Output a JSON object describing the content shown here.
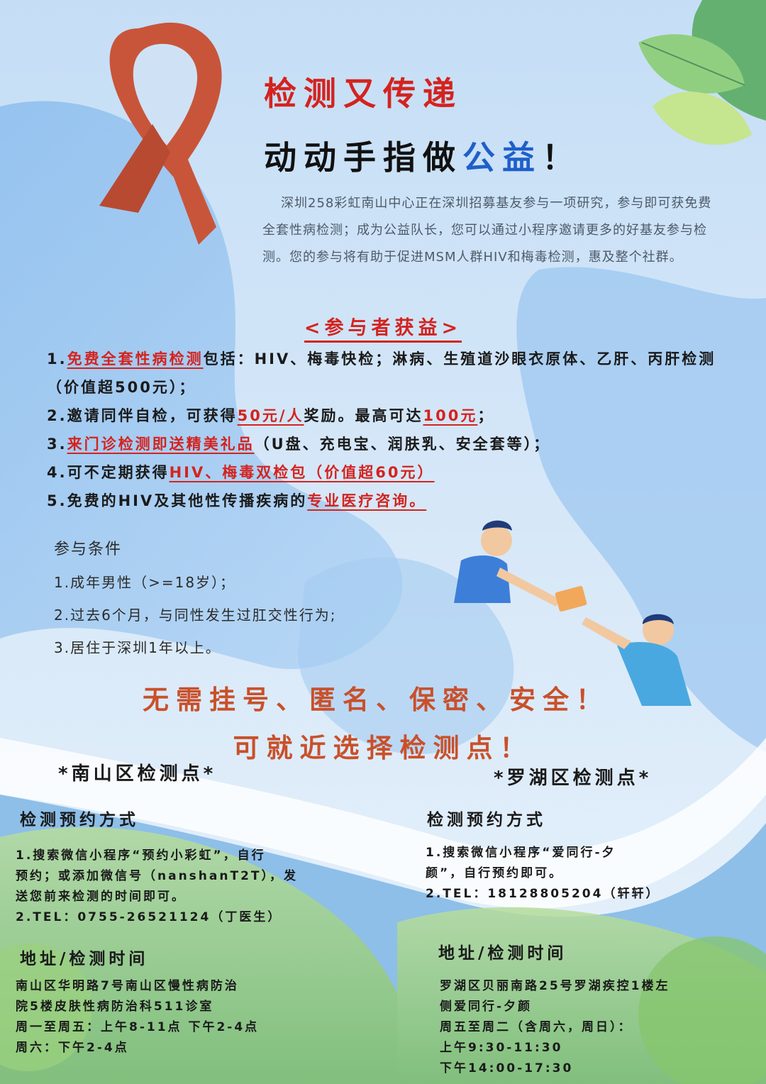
{
  "title": {
    "line1_part1": "检测又",
    "line1_part2": "传递",
    "line2_part1": "动动手指做",
    "line2_part2": "公益",
    "line2_part3": "！"
  },
  "intro": {
    "text": "深圳258彩虹南山中心正在深圳招募基友参与一项研究，参与即可获免费全套性病检测；成为公益队长，您可以通过小程序邀请更多的好基友参与检测。您的参与将有助于促进MSM人群HIV和梅毒检测，惠及整个社群。"
  },
  "benefits": {
    "heading": "<参与者获益>",
    "item1_prefix": "1.",
    "item1_hl": "免费全套性病检测",
    "item1_rest": "包括：HIV、梅毒快检；淋病、生殖道沙眼衣原体、乙肝、丙肝检测（价值超500元）；",
    "item2_prefix": "2.邀请同伴自检，可获得",
    "item2_hl1": "50元/人",
    "item2_mid": "奖励。最高可达",
    "item2_hl2": "100元",
    "item2_end": "；",
    "item3_prefix": "3.",
    "item3_hl": "来门诊检测即送精美礼品",
    "item3_rest": "（U盘、充电宝、润肤乳、安全套等）；",
    "item4_prefix": "4.可不定期获得",
    "item4_hl": "HIV、梅毒双检包（价值超60元）",
    "item5_prefix": "5.免费的HIV及其他性传播疾病的",
    "item5_hl": "专业医疗咨询。"
  },
  "conditions": {
    "heading": "参与条件",
    "items": [
      "1.成年男性（>=18岁）；",
      "2.过去6个月，与同性发生过肛交性行为;",
      "3.居住于深圳1年以上。"
    ]
  },
  "slogans": {
    "line1": "无需挂号、匿名、保密、安全！",
    "line2": "可就近选择检测点！"
  },
  "nanshan": {
    "name": "*南山区检测点*",
    "booking_head": "检测预约方式",
    "booking_lines": [
      "1.搜索微信小程序“预约小彩虹”，自行",
      "预约；或添加微信号（nanshanT2T），发",
      "送您前来检测的时间即可。",
      "2.TEL：0755-26521124（丁医生）"
    ],
    "address_head": "地址/检测时间",
    "address_lines": [
      "南山区华明路7号南山区慢性病防治",
      "院5楼皮肤性病防治科511诊室",
      "周一至周五：上午8-11点 下午2-4点",
      "周六：下午2-4点"
    ]
  },
  "luohu": {
    "name": "*罗湖区检测点*",
    "booking_head": "检测预约方式",
    "booking_lines": [
      "1.搜索微信小程序“爱同行-夕",
      "颜”，自行预约即可。",
      "2.TEL：18128805204（轩轩）"
    ],
    "address_head": "地址/检测时间",
    "address_lines": [
      "罗湖区贝丽南路25号罗湖疾控1楼左",
      "侧爱同行-夕颜",
      "周五至周二（含周六，周日）：",
      "上午9:30-11:30",
      "下午14:00-17:30"
    ]
  },
  "colors": {
    "accent_red": "#d4231f",
    "accent_blue": "#1f5fc9",
    "slogan_orange": "#c9502a",
    "ribbon": "#c8553a"
  }
}
